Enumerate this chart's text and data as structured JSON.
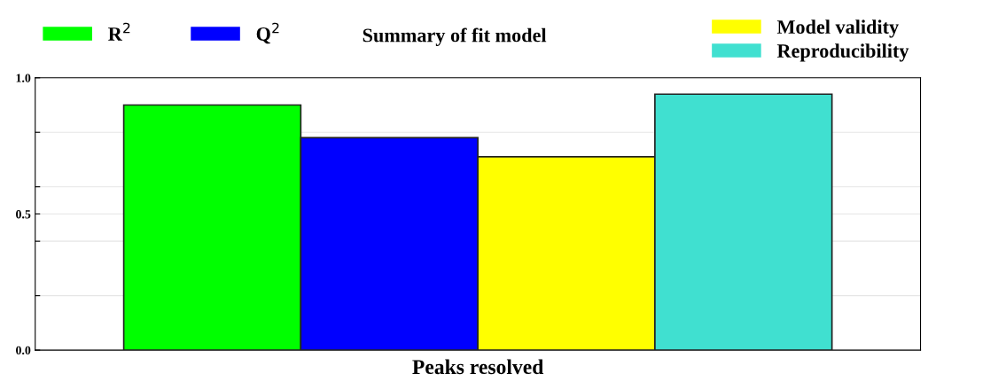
{
  "chart_data": {
    "type": "bar",
    "title": "Summary of fit model",
    "xlabel": "Peaks resolved",
    "categories": [
      null
    ],
    "series": [
      {
        "name": "R$^{2}$",
        "color": "#00ff00",
        "values": [
          0.9
        ]
      },
      {
        "name": "Q$^{2}$",
        "color": "#0000ff",
        "values": [
          0.78
        ]
      },
      {
        "name": "Model validity",
        "color": "#ffff00",
        "values": [
          0.71
        ]
      },
      {
        "name": "Reproducibility",
        "color": "#40e0d0",
        "values": [
          0.94
        ]
      }
    ],
    "ylim": [
      0,
      1.0
    ],
    "yticks": [
      {
        "value": 0,
        "label": "0.0"
      },
      {
        "value": 0.2,
        "label": null
      },
      {
        "value": 0.4,
        "label": null
      },
      {
        "value": 0.5,
        "label": "0.5"
      },
      {
        "value": 0.6,
        "label": null
      },
      {
        "value": 0.8,
        "label": null
      },
      {
        "value": 1.0,
        "label": "1.0"
      }
    ],
    "grid": "y",
    "legend": "top"
  }
}
